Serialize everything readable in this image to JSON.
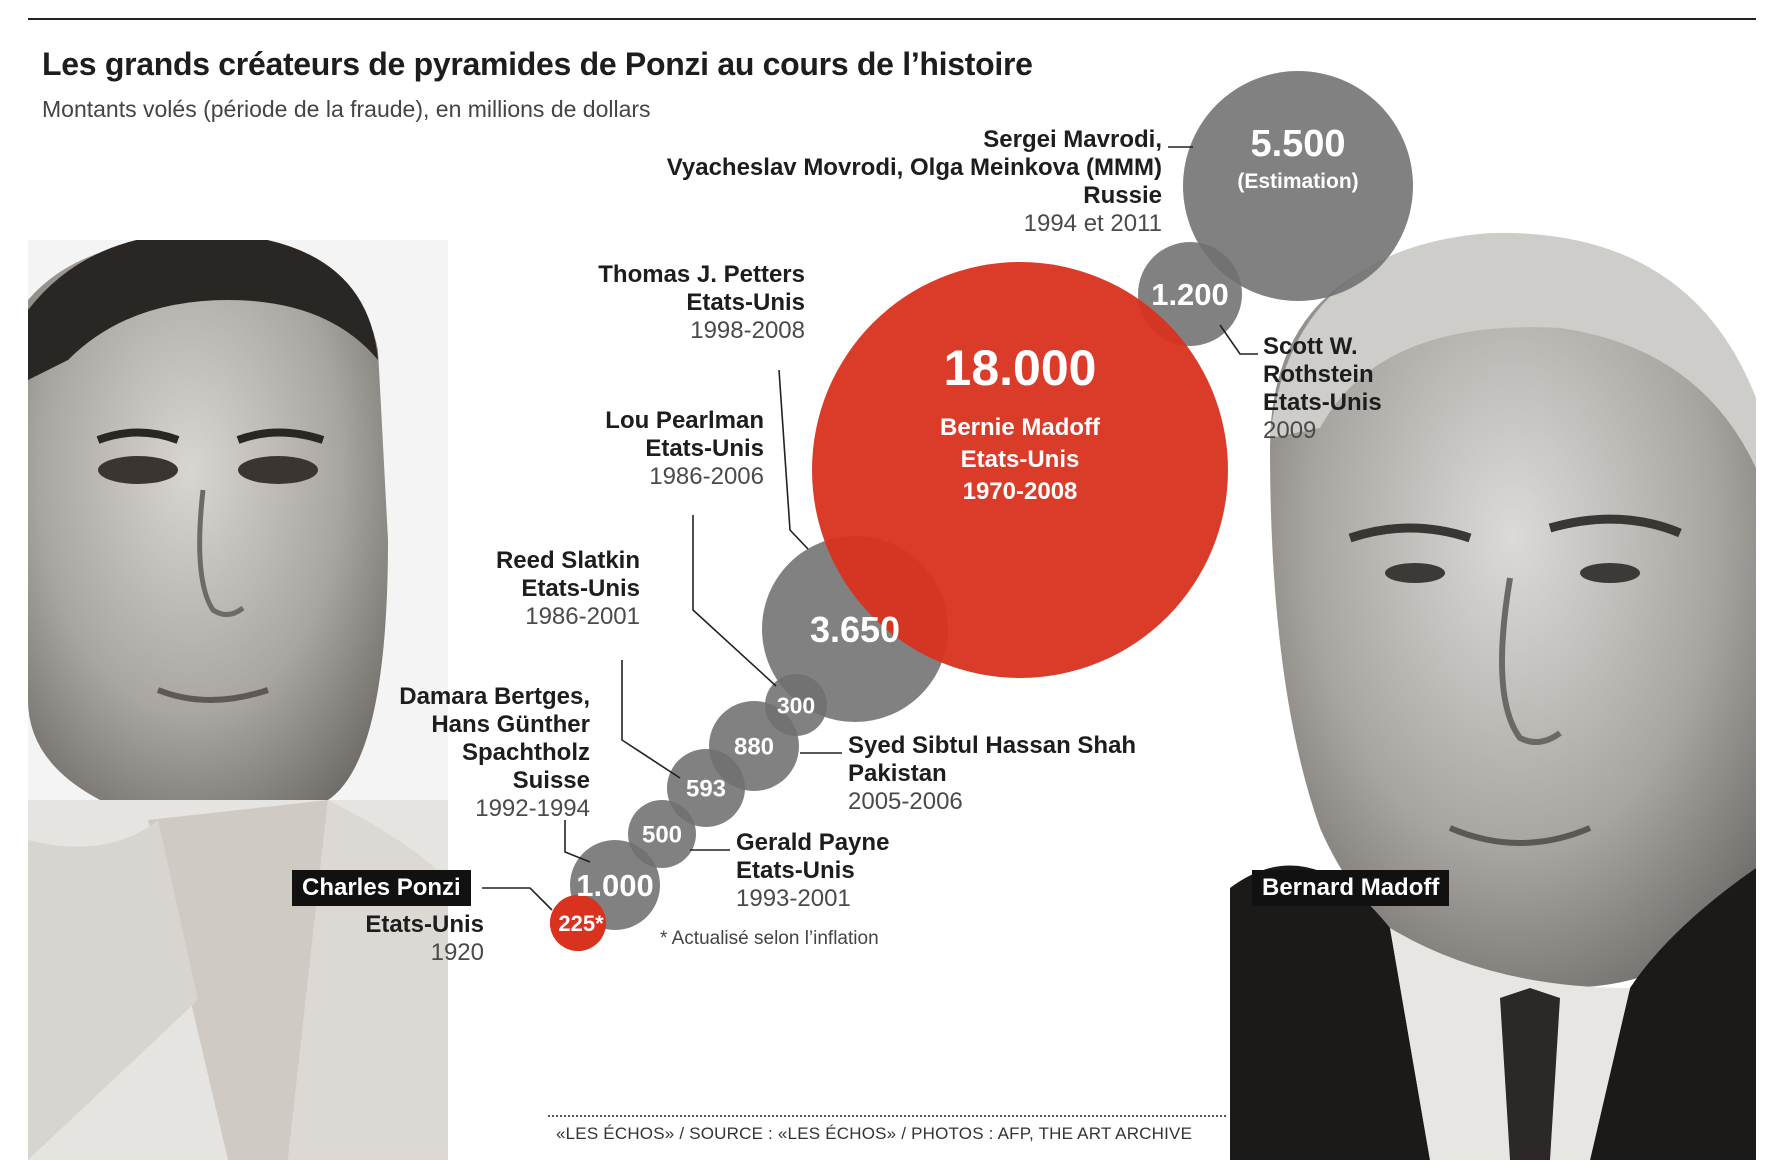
{
  "header": {
    "title": "Les grands créateurs de pyramides de Ponzi au cours de l’histoire",
    "subtitle": "Montants volés (période de la fraude), en millions de dollars"
  },
  "colors": {
    "highlight": "#d9321f",
    "bubble": "#6f6f6f",
    "text": "#1d1d1d"
  },
  "chart_data": {
    "type": "bubble",
    "title": "Les grands créateurs de pyramides de Ponzi au cours de l’histoire",
    "subtitle": "Montants volés (période de la fraude), en millions de dollars",
    "unit": "millions de dollars",
    "points": [
      {
        "value_label": "225*",
        "value": 225,
        "highlight": true,
        "name_lines": [
          "Charles Ponzi"
        ],
        "country": "Etats-Unis",
        "period": "1920"
      },
      {
        "value_label": "1.000",
        "value": 1000,
        "highlight": false,
        "name_lines": [
          "Damara Bertges,",
          "Hans Günther",
          "Spachtholz"
        ],
        "country": "Suisse",
        "period": "1992-1994"
      },
      {
        "value_label": "500",
        "value": 500,
        "highlight": false,
        "name_lines": [
          "Gerald Payne"
        ],
        "country": "Etats-Unis",
        "period": "1993-2001"
      },
      {
        "value_label": "593",
        "value": 593,
        "highlight": false,
        "name_lines": [
          "Reed Slatkin"
        ],
        "country": "Etats-Unis",
        "period": "1986-2001"
      },
      {
        "value_label": "880",
        "value": 880,
        "highlight": false,
        "name_lines": [
          "Syed Sibtul Hassan Shah"
        ],
        "country": "Pakistan",
        "period": "2005-2006"
      },
      {
        "value_label": "300",
        "value": 300,
        "highlight": false,
        "name_lines": [
          "Lou Pearlman"
        ],
        "country": "Etats-Unis",
        "period": "1986-2006"
      },
      {
        "value_label": "3.650",
        "value": 3650,
        "highlight": false,
        "name_lines": [
          "Thomas J. Petters"
        ],
        "country": "Etats-Unis",
        "period": "1998-2008"
      },
      {
        "value_label": "18.000",
        "value": 18000,
        "highlight": true,
        "name_lines": [
          "Bernie Madoff"
        ],
        "country": "Etats-Unis",
        "period": "1970-2008"
      },
      {
        "value_label": "1.200",
        "value": 1200,
        "highlight": false,
        "name_lines": [
          "Scott W.",
          "Rothstein"
        ],
        "country": "Etats-Unis",
        "period": "2009"
      },
      {
        "value_label": "5.500",
        "value": 5500,
        "highlight": false,
        "value_note": "(Estimation)",
        "name_lines": [
          "Sergei Mavrodi,",
          "Vyacheslav Movrodi, Olga Meinkova (MMM)"
        ],
        "country": "Russie",
        "period": "1994 et 2011"
      }
    ]
  },
  "portraits": {
    "left": "Charles Ponzi",
    "right": "Bernard Madoff"
  },
  "footnote": "* Actualisé selon l’inflation",
  "source": "«LES ÉCHOS» / SOURCE : «LES ÉCHOS» / PHOTOS : AFP, THE ART ARCHIVE"
}
